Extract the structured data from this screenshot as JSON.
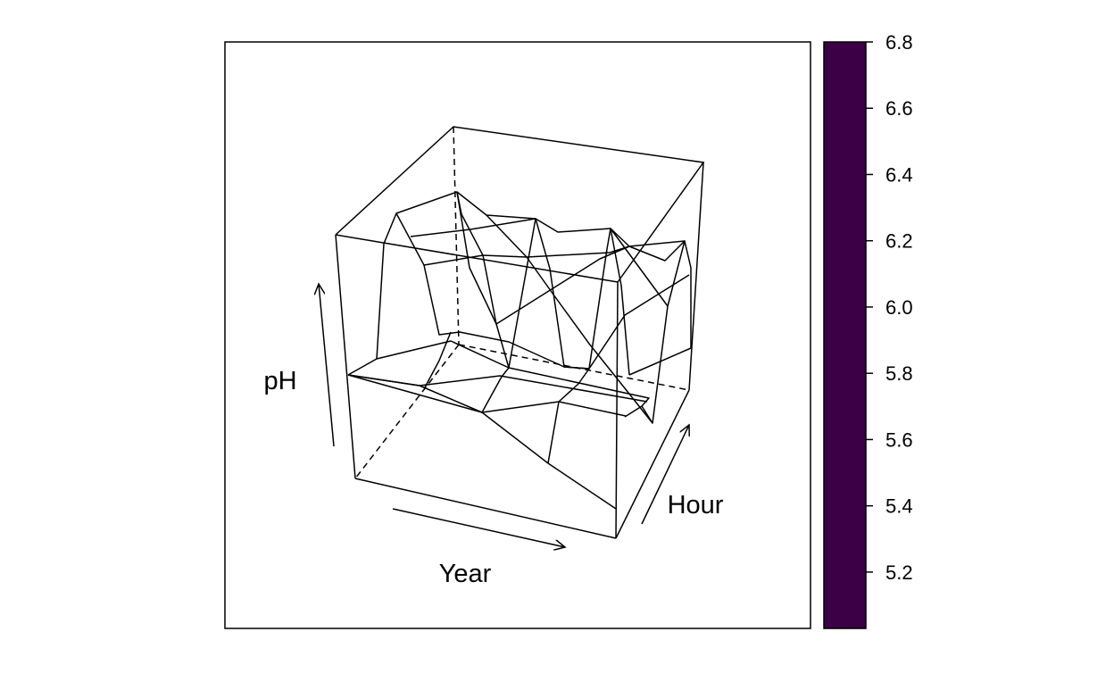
{
  "chart_data": {
    "type": "wireframe",
    "title": "",
    "xlabel": "Year",
    "ylabel": "Hour",
    "zlabel": "pH",
    "colorbar": {
      "ticks": [
        "5.2",
        "5.4",
        "5.6",
        "5.8",
        "6.0",
        "6.2",
        "6.4",
        "6.6",
        "6.8"
      ],
      "range": [
        5.03,
        6.8
      ],
      "fill_color": "#3b0046"
    },
    "grid": false,
    "legend": "colorbar-right"
  }
}
